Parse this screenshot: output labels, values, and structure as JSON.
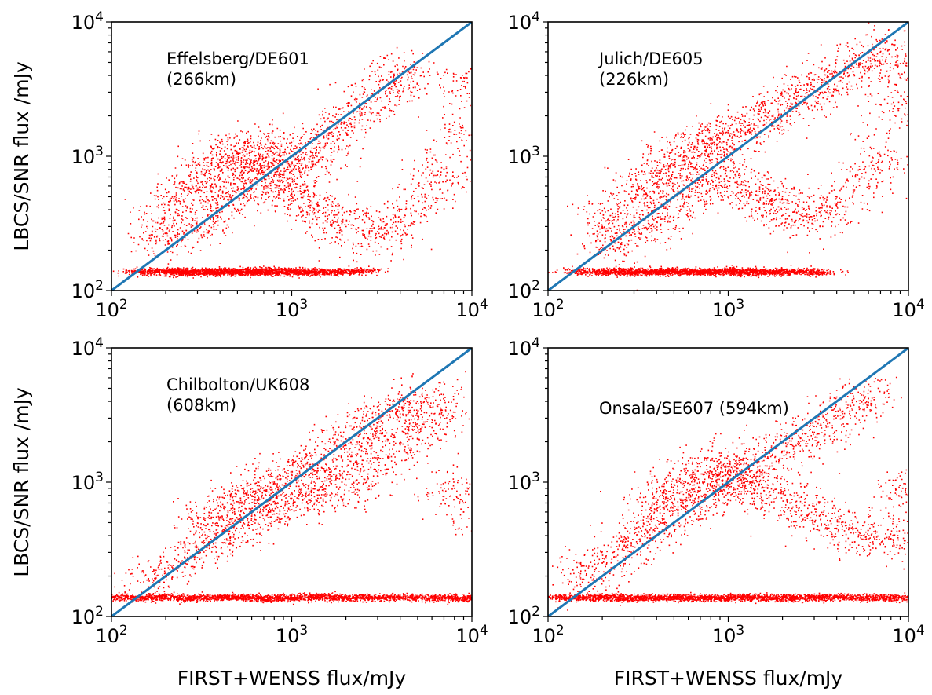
{
  "figure": {
    "colors": {
      "points": "#ff0000",
      "one_to_one_line": "#1f77b4",
      "axes": "#000000"
    }
  },
  "chart_data": [
    {
      "type": "scatter",
      "title": "",
      "xlabel": "",
      "ylabel": "LBCS/SNR flux /mJy",
      "x_scale": "log",
      "y_scale": "log",
      "xlim": [
        100,
        10000
      ],
      "ylim": [
        100,
        10000
      ],
      "ticks": [
        {
          "base": "10",
          "exp": "2"
        },
        {
          "base": "10",
          "exp": "3"
        },
        {
          "base": "10",
          "exp": "4"
        }
      ],
      "annotation": [
        "Effelsberg/DE601",
        " (266km)"
      ],
      "grid": false,
      "reference_line": {
        "x": [
          100,
          10000
        ],
        "y": [
          100,
          10000
        ]
      },
      "series": [
        {
          "marker": "point",
          "color": "#ff0000",
          "points": [
            [
              150,
              140
            ],
            [
              190,
              138
            ],
            [
              230,
              142
            ],
            [
              260,
              136
            ],
            [
              310,
              139
            ],
            [
              360,
              141
            ],
            [
              420,
              137
            ],
            [
              480,
              140
            ],
            [
              560,
              138
            ],
            [
              650,
              143
            ],
            [
              760,
              136
            ],
            [
              880,
              141
            ],
            [
              1000,
              139
            ],
            [
              1200,
              137
            ],
            [
              1450,
              140
            ],
            [
              1800,
              138
            ],
            [
              2300,
              141
            ],
            [
              180,
              320
            ],
            [
              230,
              460
            ],
            [
              280,
              610
            ],
            [
              330,
              720
            ],
            [
              400,
              900
            ],
            [
              470,
              1050
            ],
            [
              540,
              1150
            ],
            [
              620,
              1080
            ],
            [
              720,
              980
            ],
            [
              820,
              900
            ],
            [
              960,
              880
            ],
            [
              1150,
              950
            ],
            [
              1350,
              1150
            ],
            [
              1600,
              1350
            ],
            [
              1950,
              1750
            ],
            [
              2400,
              2300
            ],
            [
              3000,
              2700
            ],
            [
              3700,
              3500
            ],
            [
              4600,
              4200
            ],
            [
              200,
              240
            ],
            [
              260,
              280
            ],
            [
              340,
              360
            ],
            [
              420,
              480
            ],
            [
              500,
              560
            ],
            [
              600,
              650
            ],
            [
              700,
              760
            ],
            [
              850,
              600
            ],
            [
              1000,
              520
            ],
            [
              1250,
              430
            ],
            [
              1500,
              380
            ],
            [
              1900,
              330
            ],
            [
              2500,
              280
            ],
            [
              3200,
              260
            ],
            [
              4200,
              350
            ],
            [
              5500,
              520
            ],
            [
              7000,
              800
            ],
            [
              8500,
              1500
            ],
            [
              9200,
              3300
            ]
          ]
        }
      ]
    },
    {
      "type": "scatter",
      "title": "",
      "xlabel": "",
      "ylabel": "",
      "x_scale": "log",
      "y_scale": "log",
      "xlim": [
        100,
        10000
      ],
      "ylim": [
        100,
        10000
      ],
      "ticks": [
        {
          "base": "10",
          "exp": "2"
        },
        {
          "base": "10",
          "exp": "3"
        },
        {
          "base": "10",
          "exp": "4"
        }
      ],
      "annotation": [
        "Julich/DE605",
        " (226km)"
      ],
      "grid": false,
      "reference_line": {
        "x": [
          100,
          10000
        ],
        "y": [
          100,
          10000
        ]
      },
      "series": [
        {
          "marker": "point",
          "color": "#ff0000",
          "points": [
            [
              160,
              140
            ],
            [
              210,
              138
            ],
            [
              260,
              142
            ],
            [
              310,
              137
            ],
            [
              370,
              140
            ],
            [
              440,
              139
            ],
            [
              520,
              141
            ],
            [
              610,
              137
            ],
            [
              720,
              140
            ],
            [
              850,
              138
            ],
            [
              1000,
              142
            ],
            [
              1200,
              137
            ],
            [
              1450,
              140
            ],
            [
              1800,
              139
            ],
            [
              2300,
              141
            ],
            [
              3000,
              138
            ],
            [
              200,
              300
            ],
            [
              250,
              420
            ],
            [
              310,
              560
            ],
            [
              380,
              700
            ],
            [
              460,
              880
            ],
            [
              540,
              1000
            ],
            [
              640,
              1150
            ],
            [
              760,
              1250
            ],
            [
              900,
              1350
            ],
            [
              1080,
              1450
            ],
            [
              1300,
              1700
            ],
            [
              1600,
              2000
            ],
            [
              1950,
              2400
            ],
            [
              2400,
              2800
            ],
            [
              3000,
              3300
            ],
            [
              3800,
              3900
            ],
            [
              4800,
              4500
            ],
            [
              6000,
              5200
            ],
            [
              7500,
              6300
            ],
            [
              220,
              220
            ],
            [
              290,
              260
            ],
            [
              360,
              330
            ],
            [
              450,
              420
            ],
            [
              560,
              520
            ],
            [
              700,
              640
            ],
            [
              850,
              780
            ],
            [
              1000,
              650
            ],
            [
              1250,
              560
            ],
            [
              1500,
              480
            ],
            [
              1900,
              420
            ],
            [
              2400,
              380
            ],
            [
              3000,
              360
            ],
            [
              4000,
              440
            ],
            [
              5500,
              700
            ],
            [
              7000,
              1000
            ],
            [
              8800,
              2200
            ],
            [
              9500,
              4200
            ]
          ]
        }
      ]
    },
    {
      "type": "scatter",
      "title": "",
      "xlabel": "FIRST+WENSS flux/mJy",
      "ylabel": "LBCS/SNR flux /mJy",
      "x_scale": "log",
      "y_scale": "log",
      "xlim": [
        100,
        10000
      ],
      "ylim": [
        100,
        10000
      ],
      "ticks": [
        {
          "base": "10",
          "exp": "2"
        },
        {
          "base": "10",
          "exp": "3"
        },
        {
          "base": "10",
          "exp": "4"
        }
      ],
      "annotation": [
        "Chilbolton/UK608",
        " (608km)"
      ],
      "grid": false,
      "reference_line": {
        "x": [
          100,
          10000
        ],
        "y": [
          100,
          10000
        ]
      },
      "series": [
        {
          "marker": "point",
          "color": "#ff0000",
          "points": [
            [
              110,
              140
            ],
            [
              150,
              138
            ],
            [
              200,
              142
            ],
            [
              260,
              137
            ],
            [
              330,
              140
            ],
            [
              420,
              139
            ],
            [
              530,
              141
            ],
            [
              670,
              137
            ],
            [
              850,
              140
            ],
            [
              1080,
              138
            ],
            [
              1400,
              142
            ],
            [
              1800,
              137
            ],
            [
              2300,
              140
            ],
            [
              3000,
              139
            ],
            [
              4000,
              141
            ],
            [
              5500,
              138
            ],
            [
              7500,
              140
            ],
            [
              9500,
              137
            ],
            [
              160,
              190
            ],
            [
              220,
              240
            ],
            [
              300,
              300
            ],
            [
              380,
              380
            ],
            [
              480,
              470
            ],
            [
              600,
              560
            ],
            [
              750,
              650
            ],
            [
              950,
              720
            ],
            [
              1200,
              820
            ],
            [
              1500,
              900
            ],
            [
              1900,
              1000
            ],
            [
              2400,
              1200
            ],
            [
              3100,
              1500
            ],
            [
              4000,
              1900
            ],
            [
              5200,
              2500
            ],
            [
              6800,
              3300
            ],
            [
              330,
              520
            ],
            [
              420,
              640
            ],
            [
              520,
              760
            ],
            [
              650,
              880
            ],
            [
              800,
              1000
            ],
            [
              1000,
              1150
            ],
            [
              1250,
              1350
            ],
            [
              1600,
              1700
            ],
            [
              2000,
              2100
            ],
            [
              2500,
              2600
            ],
            [
              3200,
              3100
            ],
            [
              4200,
              3600
            ],
            [
              5500,
              4200
            ],
            [
              8000,
              900
            ],
            [
              9000,
              600
            ]
          ]
        }
      ]
    },
    {
      "type": "scatter",
      "title": "",
      "xlabel": "FIRST+WENSS flux/mJy",
      "ylabel": "",
      "x_scale": "log",
      "y_scale": "log",
      "xlim": [
        100,
        10000
      ],
      "ylim": [
        100,
        10000
      ],
      "ticks": [
        {
          "base": "10",
          "exp": "2"
        },
        {
          "base": "10",
          "exp": "3"
        },
        {
          "base": "10",
          "exp": "4"
        }
      ],
      "annotation": [
        "Onsala/SE607 (594km)"
      ],
      "grid": false,
      "reference_line": {
        "x": [
          100,
          10000
        ],
        "y": [
          100,
          10000
        ]
      },
      "series": [
        {
          "marker": "point",
          "color": "#ff0000",
          "points": [
            [
              120,
              140
            ],
            [
              160,
              138
            ],
            [
              210,
              142
            ],
            [
              270,
              137
            ],
            [
              340,
              140
            ],
            [
              430,
              139
            ],
            [
              540,
              141
            ],
            [
              680,
              137
            ],
            [
              860,
              140
            ],
            [
              1100,
              138
            ],
            [
              1400,
              142
            ],
            [
              1800,
              137
            ],
            [
              2300,
              140
            ],
            [
              3000,
              139
            ],
            [
              4000,
              141
            ],
            [
              5400,
              138
            ],
            [
              7200,
              140
            ],
            [
              9400,
              137
            ],
            [
              150,
              200
            ],
            [
              200,
              250
            ],
            [
              260,
              320
            ],
            [
              330,
              400
            ],
            [
              420,
              500
            ],
            [
              530,
              620
            ],
            [
              660,
              760
            ],
            [
              830,
              900
            ],
            [
              1050,
              1050
            ],
            [
              1300,
              1250
            ],
            [
              1650,
              1500
            ],
            [
              2100,
              1850
            ],
            [
              2700,
              2300
            ],
            [
              3500,
              2900
            ],
            [
              4600,
              3600
            ],
            [
              6000,
              4200
            ],
            [
              380,
              700
            ],
            [
              470,
              850
            ],
            [
              580,
              1000
            ],
            [
              720,
              1150
            ],
            [
              880,
              1300
            ],
            [
              1100,
              1150
            ],
            [
              1350,
              1000
            ],
            [
              1700,
              850
            ],
            [
              2200,
              700
            ],
            [
              2800,
              580
            ],
            [
              3600,
              480
            ],
            [
              4800,
              420
            ],
            [
              6500,
              380
            ],
            [
              8200,
              400
            ],
            [
              9300,
              900
            ]
          ]
        }
      ]
    }
  ]
}
